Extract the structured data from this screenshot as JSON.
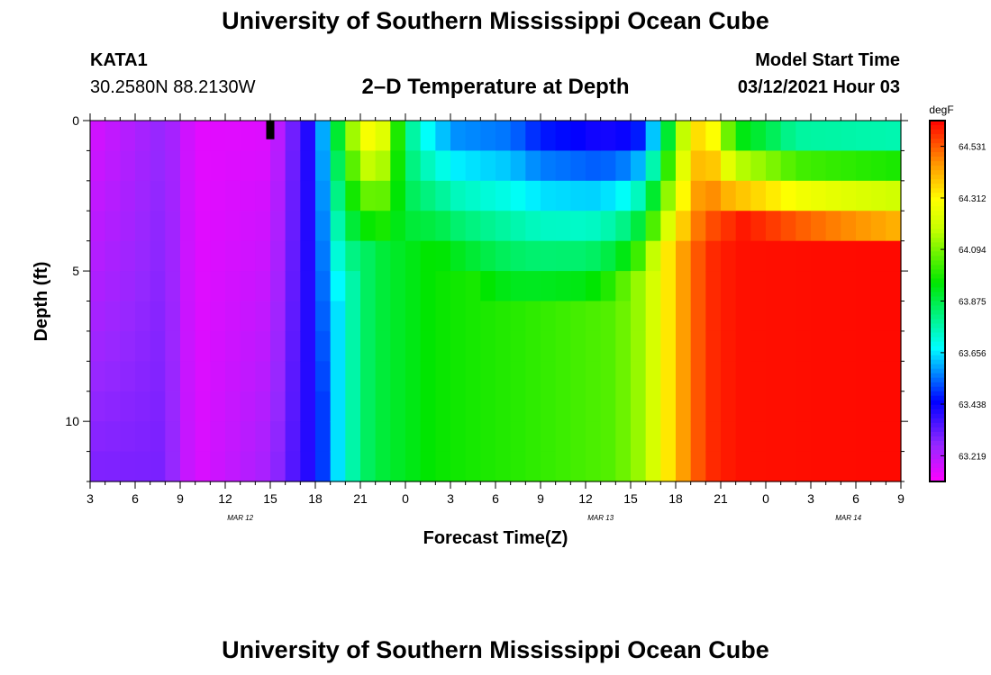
{
  "header": {
    "title": "University of Southern Mississippi Ocean Cube",
    "station_id": "KATA1",
    "station_coords": "30.2580N 88.2130W",
    "plot_title": "2–D Temperature at Depth",
    "model_label": "Model Start Time",
    "model_time": "03/12/2021 Hour 03"
  },
  "footer": {
    "title": "University of Southern Mississippi Ocean Cube"
  },
  "chart_data": {
    "type": "heatmap",
    "title": "2–D Temperature at Depth",
    "xlabel": "Forecast Time(Z)",
    "ylabel": "Depth (ft)",
    "x_start_hours": 3,
    "x_end_hours": 57,
    "x_tick_labels": [
      "3",
      "6",
      "9",
      "12",
      "15",
      "18",
      "21",
      "0",
      "3",
      "6",
      "9",
      "12",
      "15",
      "18",
      "21",
      "0",
      "3",
      "6",
      "9"
    ],
    "date_labels": [
      {
        "text": "MAR 12",
        "hour": 13
      },
      {
        "text": "MAR 13",
        "hour": 37
      },
      {
        "text": "MAR 14",
        "hour": 53.5
      }
    ],
    "y_ticks": [
      0,
      5,
      10
    ],
    "ylim": [
      0,
      12
    ],
    "colorbar": {
      "unit": "degF",
      "min": 63.11,
      "max": 64.64,
      "tick_labels": [
        "64.531",
        "64.312",
        "64.094",
        "63.875",
        "63.656",
        "63.438",
        "63.219"
      ],
      "tick_values": [
        64.531,
        64.312,
        64.094,
        63.875,
        63.656,
        63.438,
        63.219
      ]
    },
    "depth_levels_ft": [
      0.5,
      1.5,
      2.5,
      3.5,
      4.5,
      5.5,
      6.5,
      7.5,
      8.5,
      9.5,
      10.5,
      11.5
    ],
    "surface_profile": [
      [
        3,
        63.17
      ],
      [
        8,
        63.27
      ],
      [
        10,
        63.15
      ],
      [
        15,
        63.16
      ],
      [
        17,
        63.36
      ],
      [
        18,
        63.45
      ],
      [
        19,
        63.75
      ],
      [
        20,
        64.05
      ],
      [
        21,
        64.22
      ],
      [
        22,
        64.35
      ],
      [
        23,
        64.12
      ],
      [
        24,
        63.85
      ],
      [
        25,
        63.7
      ],
      [
        26,
        63.66
      ],
      [
        27,
        63.58
      ],
      [
        31,
        63.55
      ],
      [
        33,
        63.47
      ],
      [
        35,
        63.45
      ],
      [
        37,
        63.42
      ],
      [
        39,
        63.44
      ],
      [
        40,
        63.5
      ],
      [
        41,
        63.75
      ],
      [
        42,
        64.05
      ],
      [
        43,
        64.3
      ],
      [
        44,
        64.4
      ],
      [
        45,
        64.2
      ],
      [
        46,
        63.95
      ],
      [
        48,
        63.88
      ],
      [
        50,
        63.78
      ],
      [
        57,
        63.76
      ]
    ],
    "bottom_profile": [
      [
        3,
        63.3
      ],
      [
        8,
        63.3
      ],
      [
        10,
        63.16
      ],
      [
        15,
        63.25
      ],
      [
        17,
        63.38
      ],
      [
        18,
        63.42
      ],
      [
        19,
        63.58
      ],
      [
        20,
        63.72
      ],
      [
        21,
        63.82
      ],
      [
        22,
        63.88
      ],
      [
        26,
        63.96
      ],
      [
        32,
        64.0
      ],
      [
        38,
        64.05
      ],
      [
        40,
        64.15
      ],
      [
        42,
        64.4
      ],
      [
        44,
        64.58
      ],
      [
        46,
        64.62
      ],
      [
        57,
        64.63
      ]
    ],
    "surface_fraction_max_depth_ft": [
      [
        3,
        12
      ],
      [
        16,
        12
      ],
      [
        18,
        12
      ],
      [
        19,
        6
      ],
      [
        21,
        4
      ],
      [
        26,
        4
      ],
      [
        31,
        6
      ],
      [
        36,
        6
      ],
      [
        39,
        5
      ],
      [
        41,
        4
      ],
      [
        43,
        4
      ],
      [
        46,
        3
      ],
      [
        57,
        4
      ]
    ],
    "missing_marker": {
      "hour": 15,
      "depth_ft": [
        0,
        0.5
      ]
    }
  }
}
